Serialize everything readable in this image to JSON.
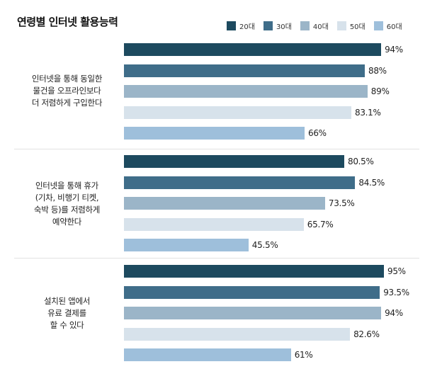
{
  "title": "연령별 인터넷 활용능력",
  "chart_data": {
    "type": "bar",
    "orientation": "horizontal",
    "title": "연령별 인터넷 활용능력",
    "xlim": [
      0,
      100
    ],
    "legend_position": "top-right",
    "series_names": [
      "20대",
      "30대",
      "40대",
      "50대",
      "60대"
    ],
    "colors": [
      "#1d4a5f",
      "#3f6d89",
      "#9bb5c8",
      "#d7e2eb",
      "#9ebfdb"
    ],
    "groups": [
      {
        "label": "인터넷을 통해 동일한\n물건을 오프라인보다\n더 저렴하게 구입한다",
        "box_color": "#f4c960",
        "values": [
          94,
          88,
          89,
          83.1,
          66
        ],
        "value_labels": [
          "94%",
          "88%",
          "89%",
          "83.1%",
          "66%"
        ]
      },
      {
        "label": "인터넷을 통해 휴가\n(기차, 비행기 티켓,\n숙박 등)를 저렴하게\n예약한다",
        "box_color": "#e8e3d9",
        "values": [
          80.5,
          84.5,
          73.5,
          65.7,
          45.5
        ],
        "value_labels": [
          "80.5%",
          "84.5%",
          "73.5%",
          "65.7%",
          "45.5%"
        ]
      },
      {
        "label": "설치된 앱에서\n유료 결제를\n할 수 있다",
        "box_color": "#f7cfc2",
        "values": [
          95,
          93.5,
          94,
          82.6,
          61
        ],
        "value_labels": [
          "95%",
          "93.5%",
          "94%",
          "82.6%",
          "61%"
        ]
      }
    ]
  }
}
